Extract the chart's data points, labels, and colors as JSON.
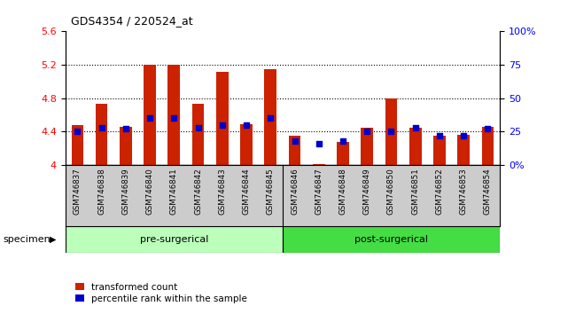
{
  "title": "GDS4354 / 220524_at",
  "samples": [
    "GSM746837",
    "GSM746838",
    "GSM746839",
    "GSM746840",
    "GSM746841",
    "GSM746842",
    "GSM746843",
    "GSM746844",
    "GSM746845",
    "GSM746846",
    "GSM746847",
    "GSM746848",
    "GSM746849",
    "GSM746850",
    "GSM746851",
    "GSM746852",
    "GSM746853",
    "GSM746854"
  ],
  "bar_values": [
    4.48,
    4.73,
    4.46,
    5.2,
    5.2,
    4.73,
    5.12,
    4.49,
    5.15,
    4.35,
    4.01,
    4.27,
    4.45,
    4.8,
    4.44,
    4.35,
    4.36,
    4.46
  ],
  "percentile_values": [
    25,
    28,
    27,
    35,
    35,
    28,
    30,
    30,
    35,
    18,
    16,
    18,
    25,
    25,
    28,
    22,
    22,
    27
  ],
  "pre_surgical_count": 9,
  "post_surgical_count": 9,
  "ymin": 4.0,
  "ymax": 5.6,
  "yticks_left": [
    4.0,
    4.4,
    4.8,
    5.2,
    5.6
  ],
  "ytick_labels_left": [
    "4",
    "4.4",
    "4.8",
    "5.2",
    "5.6"
  ],
  "yticks_right": [
    0,
    25,
    50,
    75,
    100
  ],
  "ytick_labels_right": [
    "0%",
    "25",
    "50",
    "75",
    "100%"
  ],
  "grid_yticks": [
    4.4,
    4.8,
    5.2
  ],
  "bar_color": "#cc2200",
  "dot_color": "#0000cc",
  "pre_surgical_color": "#bbffbb",
  "post_surgical_color": "#44dd44",
  "tick_bg_color": "#cccccc",
  "bar_width": 0.5,
  "dot_size": 18,
  "legend_red": "transformed count",
  "legend_blue": "percentile rank within the sample",
  "specimen_label": "specimen",
  "pre_label": "pre-surgerical",
  "post_label": "post-surgerical"
}
